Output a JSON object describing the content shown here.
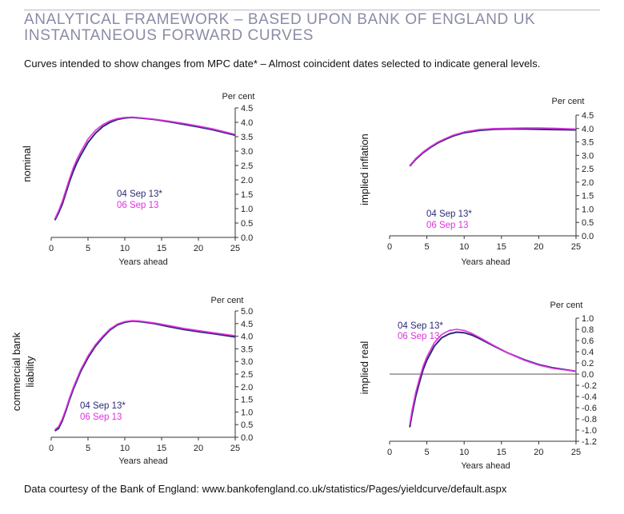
{
  "header": {
    "title_line1": "ANALYTICAL FRAMEWORK – BASED UPON BANK OF ENGLAND UK",
    "title_line2": "INSTANTANEOUS FORWARD CURVES",
    "subtitle": "Curves intended to show changes from MPC date* – Almost coincident dates selected to indicate general levels."
  },
  "footer": {
    "source": "Data courtesy of the Bank of England: www.bankofengland.co.uk/statistics/Pages/yieldcurve/default.aspx"
  },
  "colors": {
    "series_0904": "#2b2a78",
    "series_0609": "#e030e0",
    "axis": "#333333",
    "zero_line": "#555555"
  },
  "chart_data": [
    {
      "type": "line",
      "panel": "nominal",
      "ylabel": "nominal",
      "y_unit_label": "Per cent",
      "xlabel": "Years ahead",
      "xlim": [
        0,
        25
      ],
      "ylim": [
        0,
        4.5
      ],
      "xticks": [
        0,
        5,
        10,
        15,
        20,
        25
      ],
      "yticks": [
        0.0,
        0.5,
        1.0,
        1.5,
        2.0,
        2.5,
        3.0,
        3.5,
        4.0,
        4.5
      ],
      "legend_position": "center-left",
      "series": [
        {
          "name": "04 Sep 13*",
          "x": [
            0.5,
            1,
            1.5,
            2,
            2.5,
            3,
            3.5,
            4,
            5,
            6,
            7,
            8,
            9,
            10,
            11,
            12,
            14,
            16,
            18,
            20,
            22,
            25
          ],
          "y": [
            0.6,
            0.85,
            1.15,
            1.55,
            1.95,
            2.3,
            2.6,
            2.85,
            3.3,
            3.62,
            3.85,
            4.0,
            4.1,
            4.15,
            4.17,
            4.15,
            4.1,
            4.02,
            3.93,
            3.84,
            3.74,
            3.55
          ]
        },
        {
          "name": "06 Sep 13",
          "x": [
            0.5,
            1,
            1.5,
            2,
            2.5,
            3,
            3.5,
            4,
            5,
            6,
            7,
            8,
            9,
            10,
            11,
            12,
            14,
            16,
            18,
            20,
            22,
            25
          ],
          "y": [
            0.65,
            0.92,
            1.25,
            1.65,
            2.05,
            2.42,
            2.72,
            2.97,
            3.42,
            3.72,
            3.92,
            4.05,
            4.13,
            4.17,
            4.18,
            4.16,
            4.11,
            4.04,
            3.96,
            3.87,
            3.77,
            3.58
          ]
        }
      ]
    },
    {
      "type": "line",
      "panel": "implied-inflation",
      "ylabel": "implied inflation",
      "y_unit_label": "Per cent",
      "xlabel": "Years ahead",
      "xlim": [
        0,
        25
      ],
      "ylim": [
        0,
        4.5
      ],
      "xticks": [
        0,
        5,
        10,
        15,
        20,
        25
      ],
      "yticks": [
        0.0,
        0.5,
        1.0,
        1.5,
        2.0,
        2.5,
        3.0,
        3.5,
        4.0,
        4.5
      ],
      "legend_position": "bottom-left",
      "series": [
        {
          "name": "04 Sep 13*",
          "x": [
            2.7,
            3.5,
            4.5,
            5.5,
            6.5,
            7.5,
            8.5,
            10,
            12,
            14,
            16,
            18,
            20,
            22,
            25
          ],
          "y": [
            2.6,
            2.85,
            3.1,
            3.3,
            3.47,
            3.6,
            3.72,
            3.84,
            3.93,
            3.97,
            3.98,
            3.98,
            3.97,
            3.96,
            3.95
          ]
        },
        {
          "name": "06 Sep 13",
          "x": [
            2.7,
            3.5,
            4.5,
            5.5,
            6.5,
            7.5,
            8.5,
            10,
            12,
            14,
            16,
            18,
            20,
            22,
            25
          ],
          "y": [
            2.62,
            2.88,
            3.13,
            3.33,
            3.5,
            3.63,
            3.75,
            3.87,
            3.96,
            4.0,
            4.01,
            4.02,
            4.02,
            4.01,
            3.98
          ]
        }
      ]
    },
    {
      "type": "line",
      "panel": "commercial-bank-liability",
      "ylabel": "commercial bank liability",
      "y_unit_label": "Per cent",
      "xlabel": "Years ahead",
      "xlim": [
        0,
        25
      ],
      "ylim": [
        0,
        5.0
      ],
      "xticks": [
        0,
        5,
        10,
        15,
        20,
        25
      ],
      "yticks": [
        0.0,
        0.5,
        1.0,
        1.5,
        2.0,
        2.5,
        3.0,
        3.5,
        4.0,
        4.5,
        5.0
      ],
      "legend_position": "bottom-left",
      "series": [
        {
          "name": "04 Sep 13*",
          "x": [
            0.5,
            1,
            1.5,
            2,
            2.5,
            3,
            4,
            5,
            6,
            7,
            8,
            9,
            10,
            11,
            12,
            14,
            16,
            18,
            20,
            22,
            25
          ],
          "y": [
            0.25,
            0.35,
            0.65,
            1.05,
            1.5,
            1.9,
            2.6,
            3.15,
            3.6,
            3.95,
            4.25,
            4.45,
            4.55,
            4.6,
            4.58,
            4.5,
            4.38,
            4.27,
            4.18,
            4.1,
            3.97
          ]
        },
        {
          "name": "06 Sep 13",
          "x": [
            0.5,
            1,
            1.5,
            2,
            2.5,
            3,
            4,
            5,
            6,
            7,
            8,
            9,
            10,
            11,
            12,
            14,
            16,
            18,
            20,
            22,
            25
          ],
          "y": [
            0.3,
            0.42,
            0.72,
            1.12,
            1.57,
            1.97,
            2.67,
            3.22,
            3.66,
            4.0,
            4.29,
            4.48,
            4.58,
            4.62,
            4.6,
            4.53,
            4.42,
            4.31,
            4.22,
            4.14,
            4.02
          ]
        }
      ]
    },
    {
      "type": "line",
      "panel": "implied-real",
      "ylabel": "implied real",
      "y_unit_label": "Per cent",
      "xlabel": "Years ahead",
      "xlim": [
        0,
        25
      ],
      "ylim": [
        -1.2,
        1.0
      ],
      "xticks": [
        0,
        5,
        10,
        15,
        20,
        25
      ],
      "yticks": [
        -1.2,
        -1.0,
        -0.8,
        -0.6,
        -0.4,
        -0.2,
        0.0,
        0.2,
        0.4,
        0.6,
        0.8,
        1.0
      ],
      "legend_position": "top-left",
      "series": [
        {
          "name": "04 Sep 13*",
          "x": [
            2.7,
            3,
            3.5,
            4,
            4.5,
            5,
            6,
            7,
            8,
            9,
            10,
            11,
            12,
            14,
            16,
            18,
            20,
            22,
            25
          ],
          "y": [
            -0.95,
            -0.72,
            -0.4,
            -0.15,
            0.08,
            0.25,
            0.5,
            0.65,
            0.72,
            0.75,
            0.74,
            0.7,
            0.64,
            0.5,
            0.37,
            0.26,
            0.17,
            0.11,
            0.05
          ]
        },
        {
          "name": "06 Sep 13",
          "x": [
            2.7,
            3,
            3.5,
            4,
            4.5,
            5,
            6,
            7,
            8,
            9,
            10,
            11,
            12,
            14,
            16,
            18,
            20,
            22,
            25
          ],
          "y": [
            -0.9,
            -0.65,
            -0.33,
            -0.08,
            0.14,
            0.31,
            0.56,
            0.71,
            0.78,
            0.8,
            0.78,
            0.73,
            0.66,
            0.51,
            0.37,
            0.25,
            0.16,
            0.1,
            0.05
          ]
        }
      ]
    }
  ]
}
